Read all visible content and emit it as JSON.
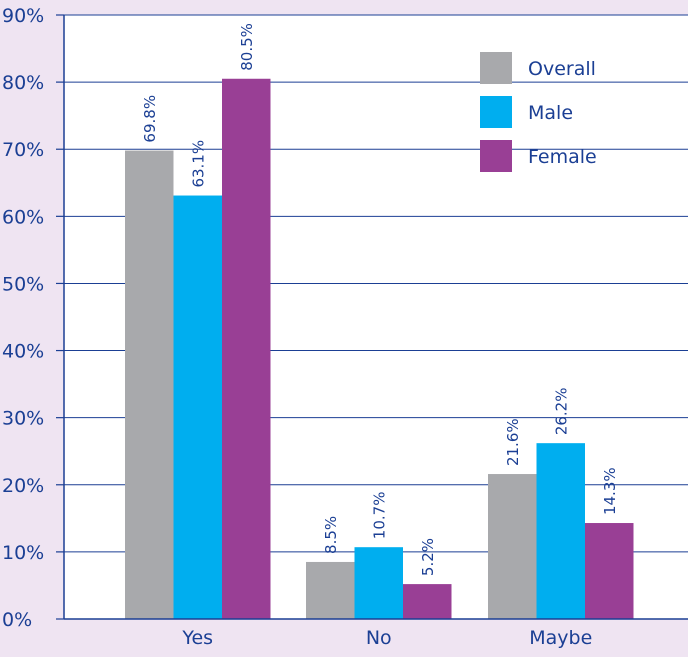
{
  "chart_data": {
    "type": "bar",
    "categories": [
      "Yes",
      "No",
      "Maybe"
    ],
    "series": [
      {
        "name": "Overall",
        "values": [
          69.8,
          8.5,
          21.6
        ],
        "labels": [
          "69.8%",
          "8.5%",
          "21.6%"
        ],
        "color": "#a8a9ac"
      },
      {
        "name": "Male",
        "values": [
          63.1,
          10.7,
          26.2
        ],
        "labels": [
          "63.1%",
          "10.7%",
          "26.2%"
        ],
        "color": "#00aeef"
      },
      {
        "name": "Female",
        "values": [
          80.5,
          5.2,
          14.3
        ],
        "labels": [
          "80.5%",
          "5.2%",
          "14.3%"
        ],
        "color": "#993f95"
      }
    ],
    "ylim": [
      0,
      90
    ],
    "yticks": [
      {
        "value": 0,
        "label": "0%"
      },
      {
        "value": 10,
        "label": "10%"
      },
      {
        "value": 20,
        "label": "20%"
      },
      {
        "value": 30,
        "label": "30%"
      },
      {
        "value": 40,
        "label": "40%"
      },
      {
        "value": 50,
        "label": "50%"
      },
      {
        "value": 60,
        "label": "60%"
      },
      {
        "value": 70,
        "label": "70%"
      },
      {
        "value": 80,
        "label": "80%"
      },
      {
        "value": 90,
        "label": "90%"
      }
    ],
    "grid": true,
    "legend_position": "top-right",
    "colors": {
      "background": "#efe4f2",
      "plot_background": "#ffffff",
      "axis": "#1b3f94",
      "text": "#1b3f94",
      "grid": "#1b3f94"
    }
  }
}
